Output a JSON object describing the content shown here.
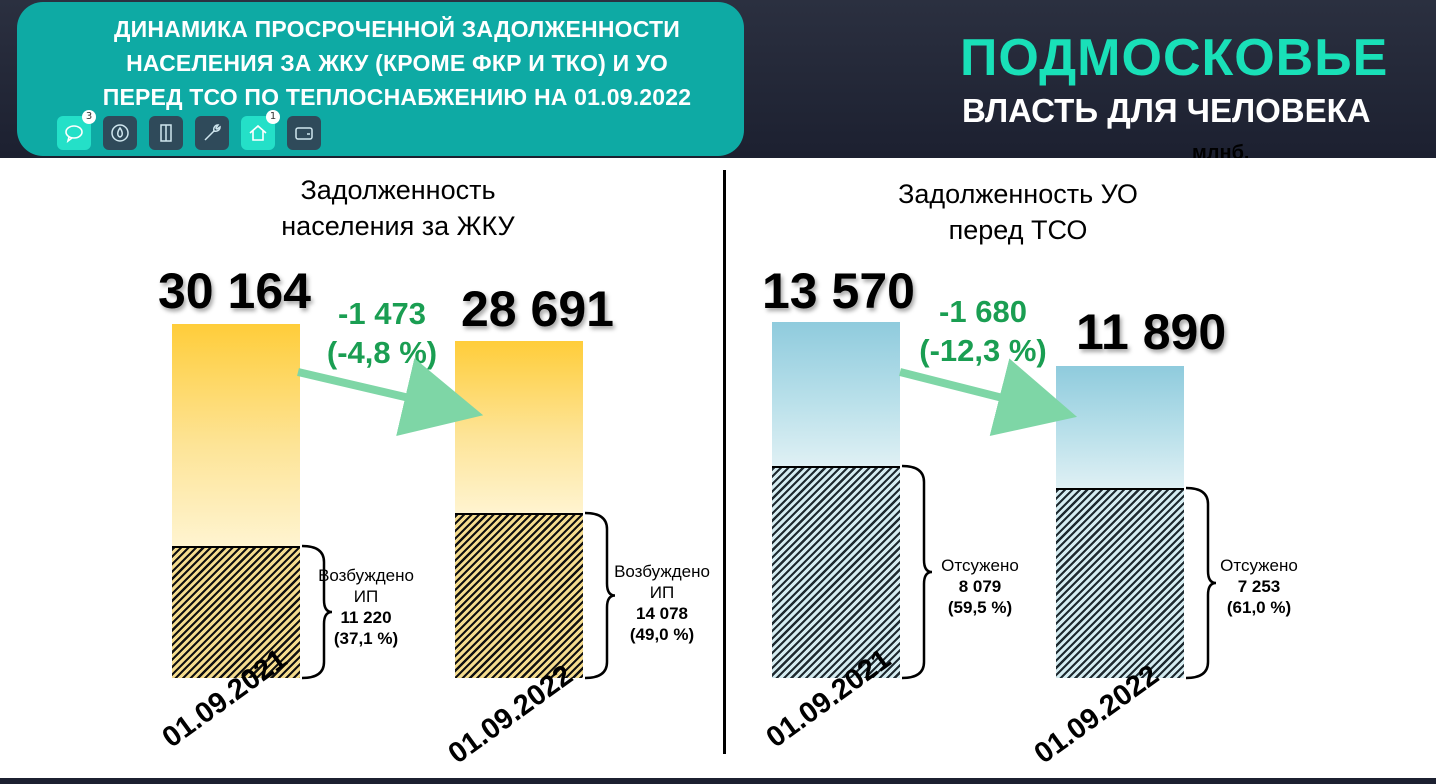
{
  "header": {
    "title": "ДИНАМИКА ПРОСРОЧЕННОЙ ЗАДОЛЖЕННОСТИ\nНАСЕЛЕНИЯ ЗА ЖКУ (КРОМЕ ФКР И ТКО) И УО\nПЕРЕД ТСО ПО ТЕПЛОСНАБЖЕНИЮ НА 01.09.2022",
    "brand_title": "ПОДМОСКОВЬЕ",
    "brand_subtitle": "ВЛАСТЬ ДЛЯ ЧЕЛОВЕКА",
    "unit": "млнб.",
    "colors": {
      "title_bg": "#0eaaa4",
      "brand": "#19e0b8",
      "header_bg": "#1c2030"
    },
    "toolbar": [
      {
        "icon": "chat-icon",
        "badge": "3",
        "active": true
      },
      {
        "icon": "water-drop-icon",
        "badge": "",
        "active": false
      },
      {
        "icon": "door-icon",
        "badge": "",
        "active": false
      },
      {
        "icon": "wrench-icon",
        "badge": "",
        "active": false
      },
      {
        "icon": "home-icon",
        "badge": "1",
        "active": true
      },
      {
        "icon": "wallet-icon",
        "badge": "",
        "active": false
      }
    ]
  },
  "chart_data": [
    {
      "type": "bar",
      "title": "Задолженность\nнаселения за ЖКУ",
      "categories": [
        "01.09.2021",
        "01.09.2022"
      ],
      "values": [
        30164,
        28691
      ],
      "value_labels": [
        "30 164",
        "28 691"
      ],
      "change": "-1 473\n(-4,8 %)",
      "sub_series": {
        "label": "Возбуждено\nИП",
        "values": [
          11220,
          14078
        ],
        "value_labels": [
          "11 220",
          "14 078"
        ],
        "share_labels": [
          "(37,1 %)",
          "(49,0 %)"
        ]
      },
      "color": "#ffcd3a"
    },
    {
      "type": "bar",
      "title": "Задолженность УО\nперед ТСО",
      "categories": [
        "01.09.2021",
        "01.09.2022"
      ],
      "values": [
        13570,
        11890
      ],
      "value_labels": [
        "13 570",
        "11 890"
      ],
      "change": "-1 680\n(-12,3 %)",
      "sub_series": {
        "label": "Отсужено",
        "values": [
          8079,
          7253
        ],
        "value_labels": [
          "8 079",
          "7 253"
        ],
        "share_labels": [
          "(59,5 %)",
          "(61,0 %)"
        ]
      },
      "color": "#8fcbdd"
    }
  ]
}
